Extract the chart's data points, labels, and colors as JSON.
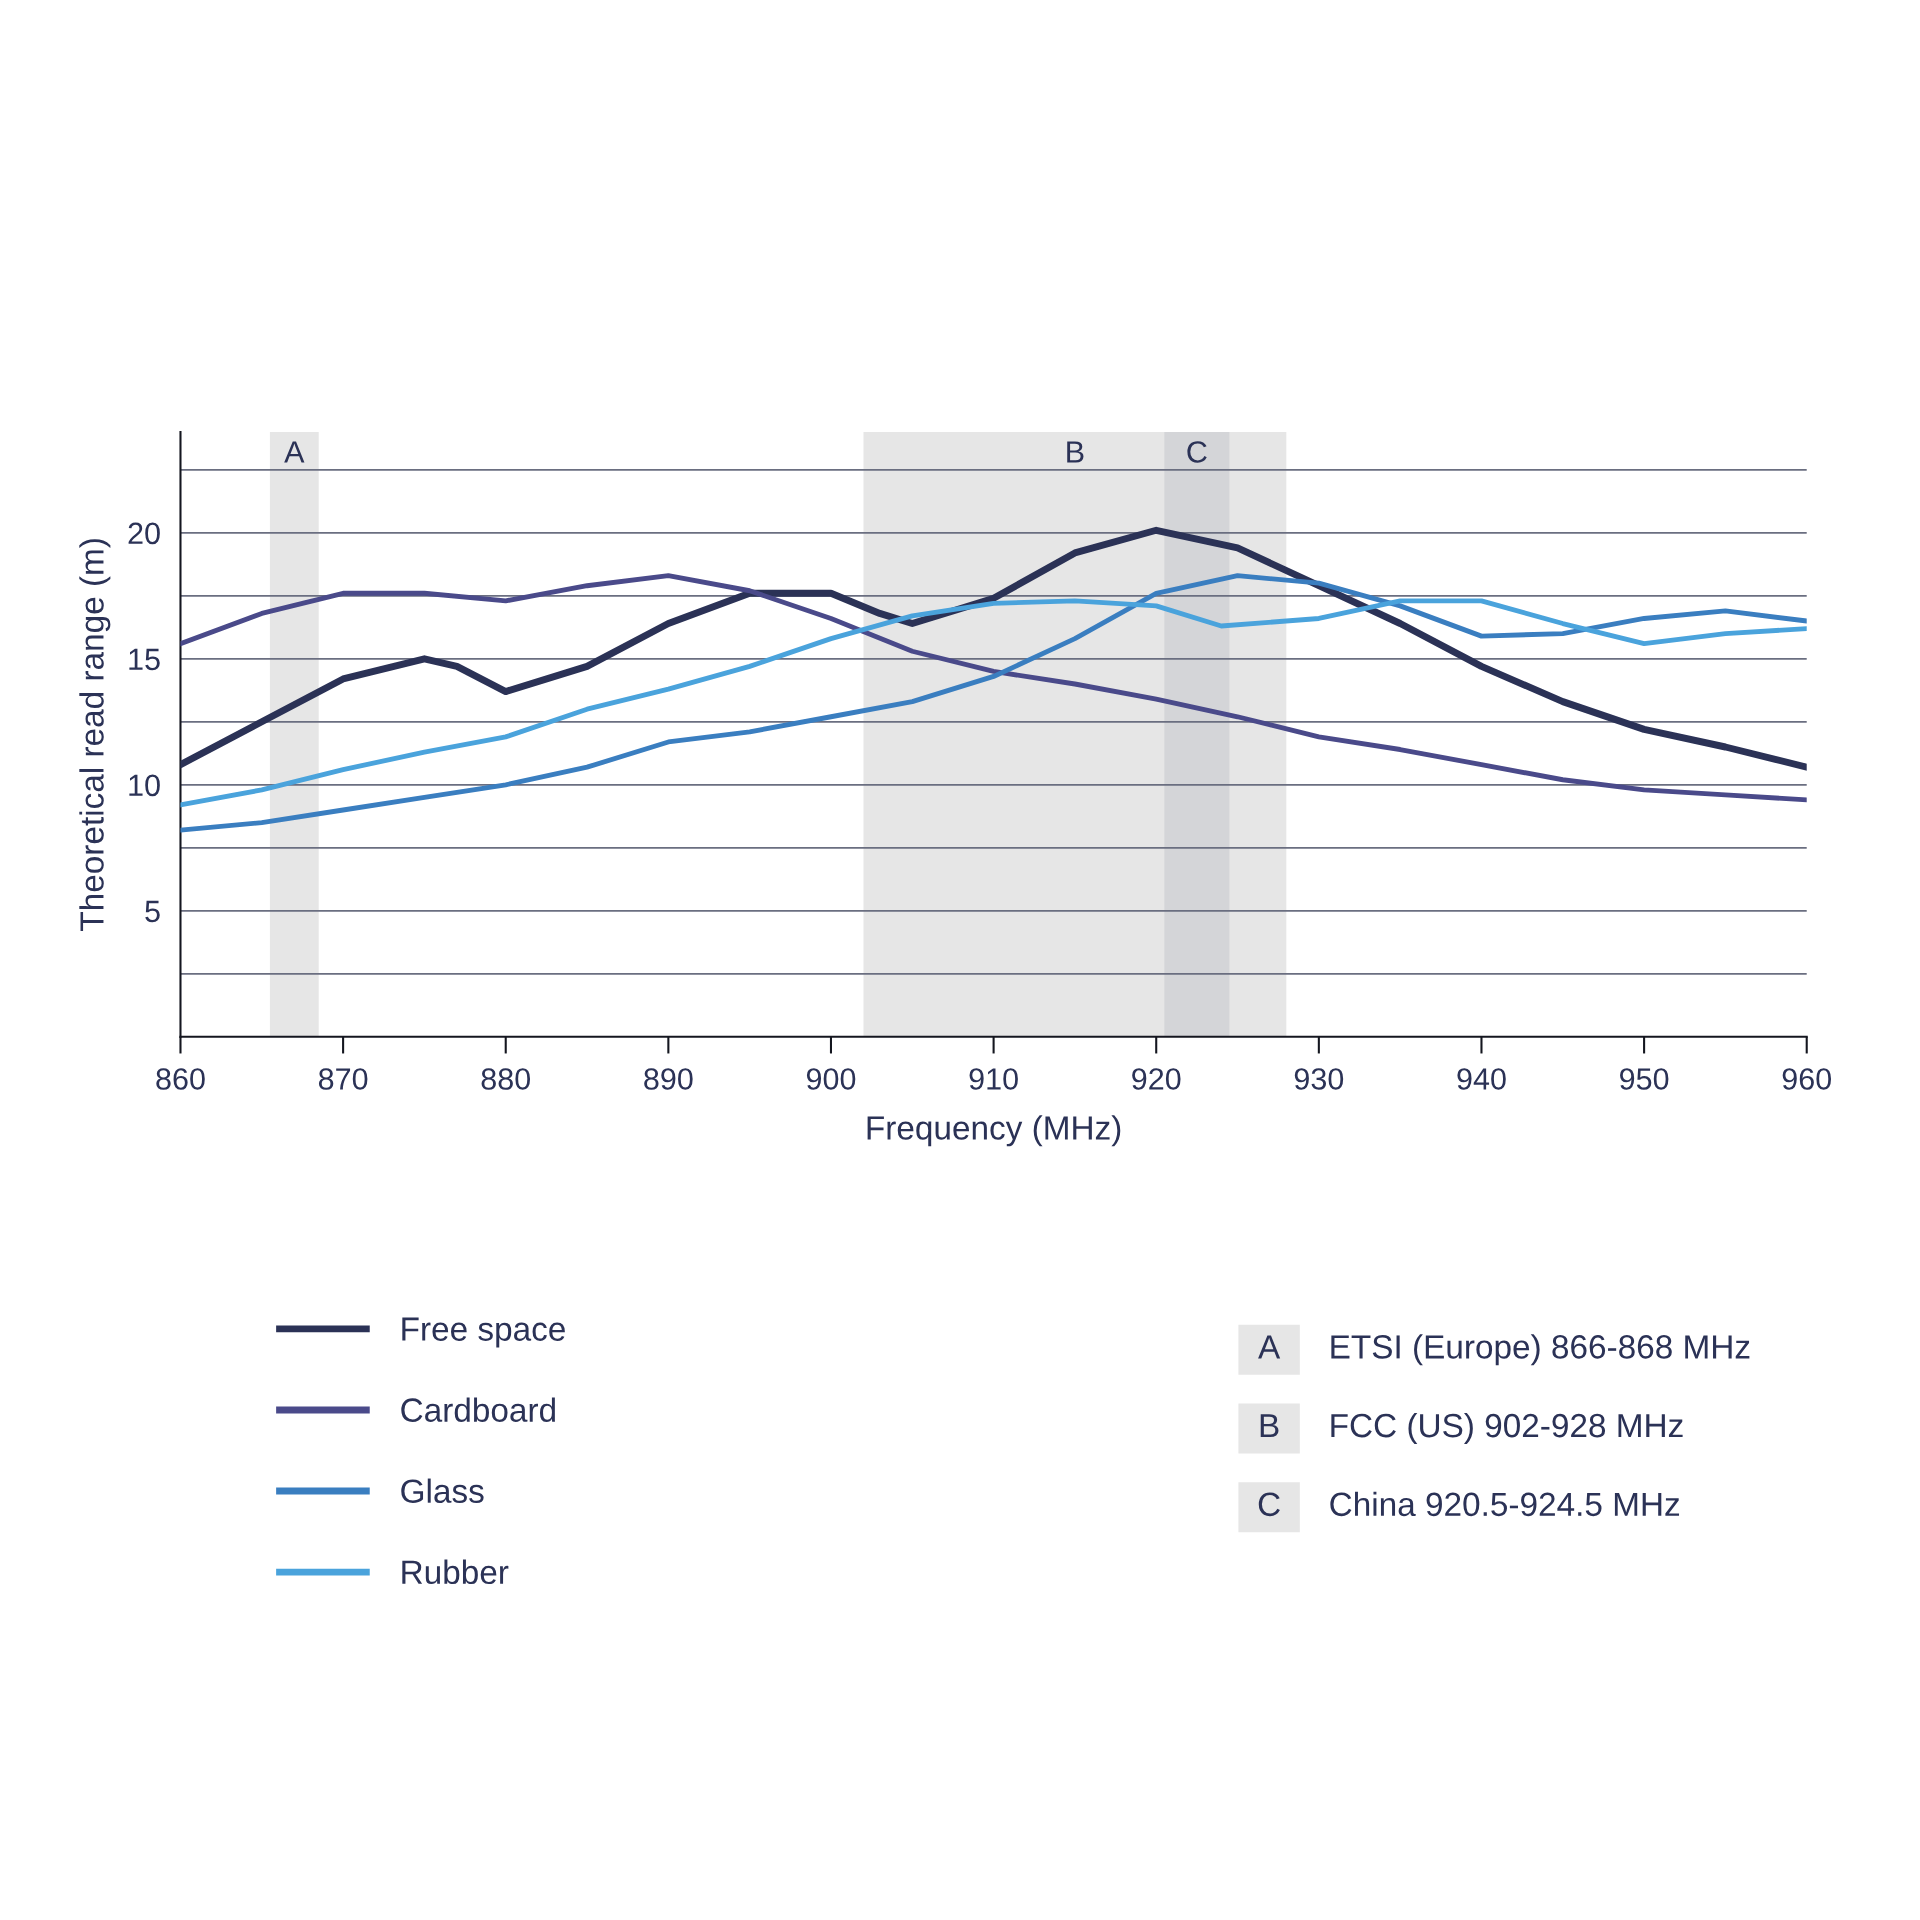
{
  "chart_data": {
    "type": "line",
    "xlabel": "Frequency (MHz)",
    "ylabel": "Theoretical read range (m)",
    "x": [
      860,
      865,
      870,
      875,
      880,
      885,
      890,
      895,
      900,
      905,
      910,
      915,
      920,
      925,
      930,
      935,
      940,
      945,
      950,
      955,
      960
    ],
    "series": [
      {
        "name": "Free space",
        "color": "#2b3256",
        "x": [
          860,
          865,
          870,
          875,
          877,
          880,
          885,
          890,
          895,
          900,
          903,
          905,
          910,
          915,
          920,
          925,
          930,
          935,
          940,
          945,
          950,
          955,
          960
        ],
        "values": [
          10.8,
          12.5,
          14.2,
          15.0,
          14.7,
          13.7,
          14.7,
          16.4,
          17.6,
          17.6,
          16.8,
          16.4,
          17.4,
          19.2,
          20.1,
          19.4,
          17.9,
          16.4,
          14.7,
          13.3,
          12.2,
          11.5,
          10.7
        ]
      },
      {
        "name": "Cardboard",
        "color": "#4a4a8a",
        "values": [
          15.6,
          16.8,
          17.6,
          17.6,
          17.3,
          17.9,
          18.3,
          17.7,
          16.6,
          15.3,
          14.5,
          14.0,
          13.4,
          12.7,
          11.9,
          11.4,
          10.8,
          10.2,
          9.8,
          9.6,
          9.4
        ]
      },
      {
        "name": "Glass",
        "color": "#3a7ec0",
        "values": [
          8.2,
          8.5,
          9.0,
          9.5,
          10.0,
          10.7,
          11.7,
          12.1,
          12.7,
          13.3,
          14.3,
          15.8,
          17.6,
          18.3,
          18.0,
          17.1,
          15.9,
          16.0,
          16.6,
          16.9,
          16.5
        ]
      },
      {
        "name": "Rubber",
        "color": "#4aa3dc",
        "x": [
          860,
          865,
          870,
          875,
          880,
          885,
          890,
          895,
          900,
          905,
          910,
          915,
          920,
          924,
          930,
          935,
          940,
          945,
          950,
          955,
          960
        ],
        "values": [
          9.2,
          9.8,
          10.6,
          11.3,
          11.9,
          13.0,
          13.8,
          14.7,
          15.8,
          16.7,
          17.2,
          17.3,
          17.1,
          16.3,
          16.6,
          17.3,
          17.3,
          16.4,
          15.6,
          16.0,
          16.2
        ]
      }
    ],
    "xlim": [
      860,
      960
    ],
    "xticks": [
      860,
      870,
      880,
      890,
      900,
      910,
      920,
      930,
      940,
      950,
      960
    ],
    "ylim": [
      0,
      24
    ],
    "yticks": [
      {
        "value": 2.5,
        "label": null
      },
      5,
      {
        "value": 7.5,
        "label": null
      },
      10,
      {
        "value": 12.5,
        "label": null
      },
      15,
      {
        "value": 17.5,
        "label": null
      },
      20,
      {
        "value": 22.5,
        "label": null
      }
    ],
    "grid": "y",
    "legend": "bottom left",
    "line_style": "solid",
    "marker": "none",
    "bands": [
      {
        "axis": "x",
        "from": 865.5,
        "to": 868.5,
        "label": "A",
        "color": "#e6e6e6"
      },
      {
        "axis": "x",
        "from": 902,
        "to": 928,
        "label": "B",
        "color": "#e6e6e6"
      },
      {
        "axis": "x",
        "from": 920.5,
        "to": 924.5,
        "label": "C",
        "color": "#d4d5d8"
      }
    ],
    "annotations": [
      "ETSI (Europe) 866-868 MHz",
      "FCC (US) 902-928 MHz",
      "China 920.5-924.5 MHz"
    ]
  }
}
